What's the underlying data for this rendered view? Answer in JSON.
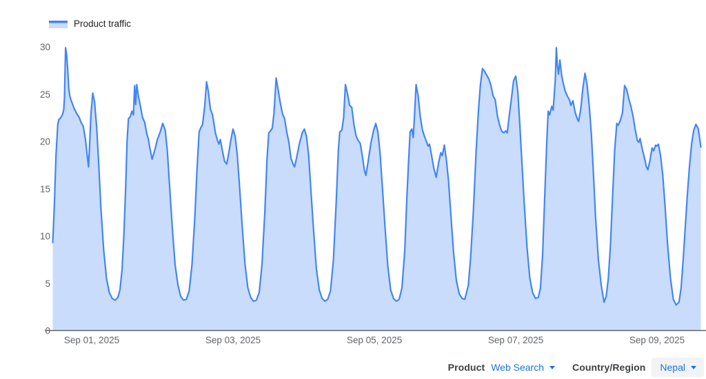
{
  "legend": {
    "label": "Product traffic"
  },
  "controls": {
    "product_label": "Product",
    "product_value": "Web Search",
    "country_label": "Country/Region",
    "country_value": "Nepal"
  },
  "colors": {
    "line": "#4285f4",
    "fill": "#c9dcfb",
    "axis_text": "#5f6368",
    "baseline": "#5f6368",
    "link": "#1a73e8",
    "chip_bg": "#f1f3f4",
    "label_text": "#3c4043"
  },
  "chart_data": {
    "type": "area",
    "title": "Product traffic",
    "xlabel": "",
    "ylabel": "",
    "grid": false,
    "legend_position": "top-left",
    "ylim": [
      0,
      30
    ],
    "y_ticks": [
      0,
      5,
      10,
      15,
      20,
      25,
      30
    ],
    "x_unit": "days relative to Sep 01, 2025 00:00",
    "x_ticks": [
      {
        "t": 0,
        "label": "Sep 01, 2025"
      },
      {
        "t": 2,
        "label": "Sep 03, 2025"
      },
      {
        "t": 4,
        "label": "Sep 05, 2025"
      },
      {
        "t": 6,
        "label": "Sep 07, 2025"
      },
      {
        "t": 8,
        "label": "Sep 09, 2025"
      }
    ],
    "series": [
      {
        "name": "Product traffic",
        "points": [
          [
            -0.551,
            9.3
          ],
          [
            -0.53,
            13.0
          ],
          [
            -0.505,
            18.5
          ],
          [
            -0.48,
            21.8
          ],
          [
            -0.465,
            22.3
          ],
          [
            -0.45,
            22.4
          ],
          [
            -0.43,
            22.6
          ],
          [
            -0.41,
            22.9
          ],
          [
            -0.395,
            23.4
          ],
          [
            -0.385,
            24.6
          ],
          [
            -0.37,
            29.9
          ],
          [
            -0.355,
            29.2
          ],
          [
            -0.34,
            27.6
          ],
          [
            -0.325,
            25.6
          ],
          [
            -0.31,
            24.8
          ],
          [
            -0.29,
            24.3
          ],
          [
            -0.25,
            23.5
          ],
          [
            -0.21,
            22.9
          ],
          [
            -0.18,
            22.6
          ],
          [
            -0.15,
            22.0
          ],
          [
            -0.12,
            21.6
          ],
          [
            -0.09,
            20.3
          ],
          [
            -0.06,
            18.3
          ],
          [
            -0.045,
            17.3
          ],
          [
            -0.03,
            19.5
          ],
          [
            -0.01,
            23.0
          ],
          [
            0.015,
            25.1
          ],
          [
            0.04,
            24.2
          ],
          [
            0.07,
            21.5
          ],
          [
            0.1,
            17.5
          ],
          [
            0.13,
            13.0
          ],
          [
            0.17,
            8.5
          ],
          [
            0.21,
            5.5
          ],
          [
            0.25,
            4.0
          ],
          [
            0.29,
            3.4
          ],
          [
            0.33,
            3.2
          ],
          [
            0.37,
            3.5
          ],
          [
            0.4,
            4.3
          ],
          [
            0.43,
            6.5
          ],
          [
            0.455,
            10.0
          ],
          [
            0.48,
            15.0
          ],
          [
            0.5,
            20.0
          ],
          [
            0.52,
            22.4
          ],
          [
            0.545,
            22.6
          ],
          [
            0.57,
            23.2
          ],
          [
            0.59,
            22.8
          ],
          [
            0.608,
            25.9
          ],
          [
            0.622,
            23.9
          ],
          [
            0.638,
            26.0
          ],
          [
            0.66,
            24.8
          ],
          [
            0.69,
            23.7
          ],
          [
            0.72,
            22.5
          ],
          [
            0.75,
            22.0
          ],
          [
            0.78,
            20.8
          ],
          [
            0.8,
            20.3
          ],
          [
            0.82,
            19.4
          ],
          [
            0.855,
            18.1
          ],
          [
            0.89,
            19.0
          ],
          [
            0.93,
            20.2
          ],
          [
            0.97,
            21.0
          ],
          [
            1.005,
            21.9
          ],
          [
            1.04,
            21.2
          ],
          [
            1.07,
            19.0
          ],
          [
            1.1,
            15.5
          ],
          [
            1.14,
            11.0
          ],
          [
            1.18,
            7.0
          ],
          [
            1.22,
            4.8
          ],
          [
            1.26,
            3.6
          ],
          [
            1.3,
            3.2
          ],
          [
            1.34,
            3.3
          ],
          [
            1.38,
            4.2
          ],
          [
            1.42,
            7.0
          ],
          [
            1.46,
            12.0
          ],
          [
            1.49,
            17.0
          ],
          [
            1.52,
            21.0
          ],
          [
            1.54,
            21.4
          ],
          [
            1.57,
            21.8
          ],
          [
            1.6,
            23.8
          ],
          [
            1.625,
            26.3
          ],
          [
            1.65,
            25.3
          ],
          [
            1.68,
            23.4
          ],
          [
            1.71,
            22.8
          ],
          [
            1.75,
            20.9
          ],
          [
            1.78,
            20.1
          ],
          [
            1.8,
            19.7
          ],
          [
            1.82,
            20.2
          ],
          [
            1.85,
            19.0
          ],
          [
            1.88,
            17.9
          ],
          [
            1.91,
            17.6
          ],
          [
            1.94,
            18.8
          ],
          [
            1.97,
            20.2
          ],
          [
            2.0,
            21.3
          ],
          [
            2.03,
            20.5
          ],
          [
            2.06,
            18.6
          ],
          [
            2.09,
            15.5
          ],
          [
            2.13,
            11.0
          ],
          [
            2.17,
            7.0
          ],
          [
            2.21,
            4.5
          ],
          [
            2.25,
            3.5
          ],
          [
            2.29,
            3.1
          ],
          [
            2.33,
            3.2
          ],
          [
            2.37,
            4.0
          ],
          [
            2.41,
            7.0
          ],
          [
            2.45,
            12.5
          ],
          [
            2.48,
            18.0
          ],
          [
            2.505,
            20.9
          ],
          [
            2.53,
            21.1
          ],
          [
            2.555,
            21.4
          ],
          [
            2.58,
            23.0
          ],
          [
            2.61,
            26.7
          ],
          [
            2.64,
            25.4
          ],
          [
            2.67,
            24.0
          ],
          [
            2.7,
            22.9
          ],
          [
            2.73,
            22.4
          ],
          [
            2.76,
            21.0
          ],
          [
            2.79,
            19.9
          ],
          [
            2.82,
            18.2
          ],
          [
            2.85,
            17.6
          ],
          [
            2.87,
            17.3
          ],
          [
            2.9,
            18.3
          ],
          [
            2.94,
            19.8
          ],
          [
            2.98,
            20.9
          ],
          [
            3.01,
            21.3
          ],
          [
            3.04,
            20.5
          ],
          [
            3.07,
            18.5
          ],
          [
            3.1,
            15.0
          ],
          [
            3.14,
            10.5
          ],
          [
            3.18,
            6.5
          ],
          [
            3.22,
            4.3
          ],
          [
            3.26,
            3.4
          ],
          [
            3.3,
            3.1
          ],
          [
            3.34,
            3.3
          ],
          [
            3.38,
            4.2
          ],
          [
            3.42,
            7.5
          ],
          [
            3.46,
            13.5
          ],
          [
            3.49,
            19.0
          ],
          [
            3.51,
            21.0
          ],
          [
            3.54,
            21.2
          ],
          [
            3.565,
            22.5
          ],
          [
            3.59,
            26.0
          ],
          [
            3.62,
            25.0
          ],
          [
            3.65,
            23.8
          ],
          [
            3.68,
            23.6
          ],
          [
            3.71,
            21.8
          ],
          [
            3.74,
            20.6
          ],
          [
            3.77,
            20.1
          ],
          [
            3.8,
            19.8
          ],
          [
            3.83,
            18.4
          ],
          [
            3.86,
            16.9
          ],
          [
            3.88,
            16.4
          ],
          [
            3.91,
            17.8
          ],
          [
            3.95,
            19.8
          ],
          [
            3.99,
            21.2
          ],
          [
            4.02,
            21.9
          ],
          [
            4.05,
            21.0
          ],
          [
            4.08,
            18.8
          ],
          [
            4.11,
            15.5
          ],
          [
            4.15,
            11.0
          ],
          [
            4.19,
            6.8
          ],
          [
            4.23,
            4.3
          ],
          [
            4.27,
            3.4
          ],
          [
            4.31,
            3.1
          ],
          [
            4.35,
            3.3
          ],
          [
            4.39,
            4.5
          ],
          [
            4.43,
            8.5
          ],
          [
            4.46,
            14.0
          ],
          [
            4.485,
            18.0
          ],
          [
            4.505,
            21.0
          ],
          [
            4.53,
            21.3
          ],
          [
            4.55,
            20.4
          ],
          [
            4.57,
            23.0
          ],
          [
            4.59,
            26.0
          ],
          [
            4.62,
            24.8
          ],
          [
            4.65,
            22.6
          ],
          [
            4.68,
            21.2
          ],
          [
            4.71,
            20.5
          ],
          [
            4.74,
            19.9
          ],
          [
            4.76,
            19.5
          ],
          [
            4.78,
            19.7
          ],
          [
            4.81,
            18.5
          ],
          [
            4.84,
            17.2
          ],
          [
            4.875,
            16.2
          ],
          [
            4.91,
            17.8
          ],
          [
            4.94,
            18.8
          ],
          [
            4.96,
            18.5
          ],
          [
            4.99,
            19.6
          ],
          [
            5.02,
            18.0
          ],
          [
            5.05,
            15.8
          ],
          [
            5.08,
            12.5
          ],
          [
            5.12,
            8.3
          ],
          [
            5.16,
            5.3
          ],
          [
            5.2,
            3.9
          ],
          [
            5.24,
            3.4
          ],
          [
            5.28,
            3.3
          ],
          [
            5.33,
            4.8
          ],
          [
            5.36,
            7.5
          ],
          [
            5.4,
            12.5
          ],
          [
            5.44,
            19.0
          ],
          [
            5.47,
            23.0
          ],
          [
            5.5,
            26.0
          ],
          [
            5.53,
            27.7
          ],
          [
            5.56,
            27.4
          ],
          [
            5.59,
            27.0
          ],
          [
            5.62,
            26.6
          ],
          [
            5.65,
            25.9
          ],
          [
            5.68,
            24.8
          ],
          [
            5.71,
            24.4
          ],
          [
            5.74,
            22.7
          ],
          [
            5.77,
            21.8
          ],
          [
            5.8,
            21.1
          ],
          [
            5.83,
            20.9
          ],
          [
            5.86,
            21.1
          ],
          [
            5.88,
            20.9
          ],
          [
            5.91,
            22.8
          ],
          [
            5.94,
            24.6
          ],
          [
            5.97,
            26.4
          ],
          [
            6.0,
            26.9
          ],
          [
            6.03,
            25.2
          ],
          [
            6.06,
            21.6
          ],
          [
            6.09,
            17.5
          ],
          [
            6.12,
            13.5
          ],
          [
            6.16,
            8.8
          ],
          [
            6.2,
            5.5
          ],
          [
            6.24,
            4.0
          ],
          [
            6.28,
            3.4
          ],
          [
            6.32,
            3.5
          ],
          [
            6.35,
            4.5
          ],
          [
            6.38,
            8.0
          ],
          [
            6.41,
            14.0
          ],
          [
            6.44,
            20.0
          ],
          [
            6.46,
            23.2
          ],
          [
            6.48,
            22.8
          ],
          [
            6.51,
            23.7
          ],
          [
            6.53,
            23.3
          ],
          [
            6.56,
            26.5
          ],
          [
            6.575,
            29.9
          ],
          [
            6.59,
            28.0
          ],
          [
            6.605,
            27.1
          ],
          [
            6.625,
            28.6
          ],
          [
            6.65,
            27.0
          ],
          [
            6.67,
            26.2
          ],
          [
            6.7,
            25.3
          ],
          [
            6.73,
            24.8
          ],
          [
            6.76,
            24.4
          ],
          [
            6.78,
            23.8
          ],
          [
            6.81,
            24.3
          ],
          [
            6.84,
            23.1
          ],
          [
            6.87,
            22.4
          ],
          [
            6.89,
            22.1
          ],
          [
            6.92,
            23.4
          ],
          [
            6.95,
            25.6
          ],
          [
            6.98,
            27.2
          ],
          [
            7.01,
            26.0
          ],
          [
            7.04,
            23.8
          ],
          [
            7.07,
            20.8
          ],
          [
            7.1,
            16.5
          ],
          [
            7.13,
            12.0
          ],
          [
            7.17,
            7.5
          ],
          [
            7.21,
            4.8
          ],
          [
            7.25,
            3.0
          ],
          [
            7.28,
            3.6
          ],
          [
            7.31,
            5.5
          ],
          [
            7.34,
            9.0
          ],
          [
            7.37,
            14.0
          ],
          [
            7.4,
            19.0
          ],
          [
            7.43,
            21.9
          ],
          [
            7.45,
            21.7
          ],
          [
            7.48,
            22.2
          ],
          [
            7.51,
            23.0
          ],
          [
            7.54,
            25.9
          ],
          [
            7.57,
            25.5
          ],
          [
            7.6,
            24.5
          ],
          [
            7.63,
            23.7
          ],
          [
            7.66,
            22.7
          ],
          [
            7.69,
            21.3
          ],
          [
            7.72,
            20.1
          ],
          [
            7.74,
            19.9
          ],
          [
            7.76,
            20.3
          ],
          [
            7.79,
            19.2
          ],
          [
            7.82,
            18.3
          ],
          [
            7.85,
            17.3
          ],
          [
            7.87,
            17.0
          ],
          [
            7.9,
            18.0
          ],
          [
            7.93,
            19.3
          ],
          [
            7.95,
            19.0
          ],
          [
            7.98,
            19.6
          ],
          [
            8.0,
            19.5
          ],
          [
            8.02,
            19.7
          ],
          [
            8.05,
            18.5
          ],
          [
            8.08,
            16.5
          ],
          [
            8.11,
            13.5
          ],
          [
            8.15,
            9.0
          ],
          [
            8.19,
            5.5
          ],
          [
            8.23,
            3.3
          ],
          [
            8.27,
            2.7
          ],
          [
            8.31,
            3.0
          ],
          [
            8.34,
            4.5
          ],
          [
            8.37,
            7.5
          ],
          [
            8.4,
            11.0
          ],
          [
            8.43,
            14.5
          ],
          [
            8.46,
            17.5
          ],
          [
            8.49,
            19.8
          ],
          [
            8.52,
            21.2
          ],
          [
            8.55,
            21.8
          ],
          [
            8.58,
            21.4
          ],
          [
            8.6,
            20.5
          ],
          [
            8.62,
            19.4
          ]
        ]
      }
    ]
  }
}
